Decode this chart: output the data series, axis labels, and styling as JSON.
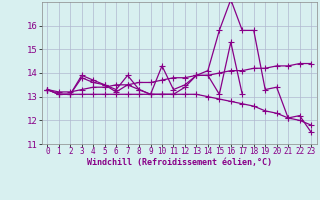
{
  "x": [
    0,
    1,
    2,
    3,
    4,
    5,
    6,
    7,
    8,
    9,
    10,
    11,
    12,
    13,
    14,
    15,
    16,
    17,
    18,
    19,
    20,
    21,
    22,
    23
  ],
  "line1": [
    13.3,
    13.1,
    13.1,
    13.9,
    13.7,
    13.5,
    13.3,
    13.9,
    13.3,
    13.1,
    13.1,
    13.1,
    13.4,
    13.9,
    13.9,
    13.1,
    15.3,
    13.1,
    null,
    null,
    null,
    null,
    null,
    null
  ],
  "line2": [
    13.3,
    13.1,
    13.1,
    13.8,
    13.6,
    13.5,
    13.2,
    13.5,
    13.3,
    13.1,
    14.3,
    13.3,
    13.5,
    13.9,
    14.1,
    15.8,
    17.1,
    15.8,
    15.8,
    13.3,
    13.4,
    12.1,
    12.2,
    11.5
  ],
  "line3": [
    13.3,
    13.1,
    13.1,
    13.1,
    13.1,
    13.1,
    13.1,
    13.1,
    13.1,
    13.1,
    13.1,
    13.1,
    13.1,
    13.1,
    13.0,
    12.9,
    12.8,
    12.7,
    12.6,
    12.4,
    12.3,
    12.1,
    12.0,
    11.8
  ],
  "line4": [
    13.3,
    13.2,
    13.2,
    13.3,
    13.4,
    13.4,
    13.5,
    13.5,
    13.6,
    13.6,
    13.7,
    13.8,
    13.8,
    13.9,
    13.9,
    14.0,
    14.1,
    14.1,
    14.2,
    14.2,
    14.3,
    14.3,
    14.4,
    14.4
  ],
  "xlim": [
    -0.5,
    23.5
  ],
  "ylim": [
    11,
    17
  ],
  "xticks": [
    0,
    1,
    2,
    3,
    4,
    5,
    6,
    7,
    8,
    9,
    10,
    11,
    12,
    13,
    14,
    15,
    16,
    17,
    18,
    19,
    20,
    21,
    22,
    23
  ],
  "yticks": [
    11,
    12,
    13,
    14,
    15,
    16
  ],
  "xlabel": "Windchill (Refroidissement éolien,°C)",
  "line_color": "#880088",
  "bg_color": "#d8f0f0",
  "grid_color": "#b0b8d0",
  "marker": "+",
  "marker_size": 4,
  "linewidth": 0.9,
  "tick_color": "#880088",
  "label_fontsize": 5.5,
  "ylabel_fontsize": 6.5,
  "xlabel_fontsize": 6.0
}
